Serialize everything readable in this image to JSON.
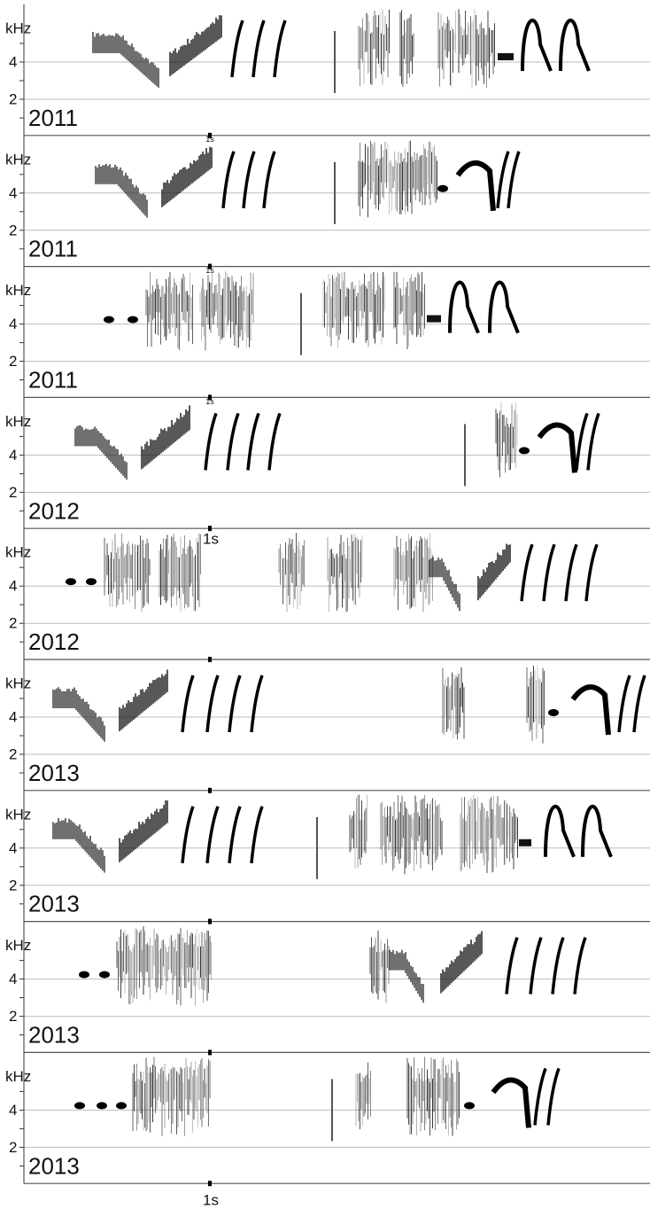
{
  "axis_unit": "kHz",
  "y_ticks": [
    "4",
    "2"
  ],
  "time_marker": "1s",
  "panels": [
    {
      "year": "2011"
    },
    {
      "year": "2011"
    },
    {
      "year": "2011"
    },
    {
      "year": "2012"
    },
    {
      "year": "2012"
    },
    {
      "year": "2013"
    },
    {
      "year": "2013"
    },
    {
      "year": "2013"
    },
    {
      "year": "2013"
    }
  ]
}
